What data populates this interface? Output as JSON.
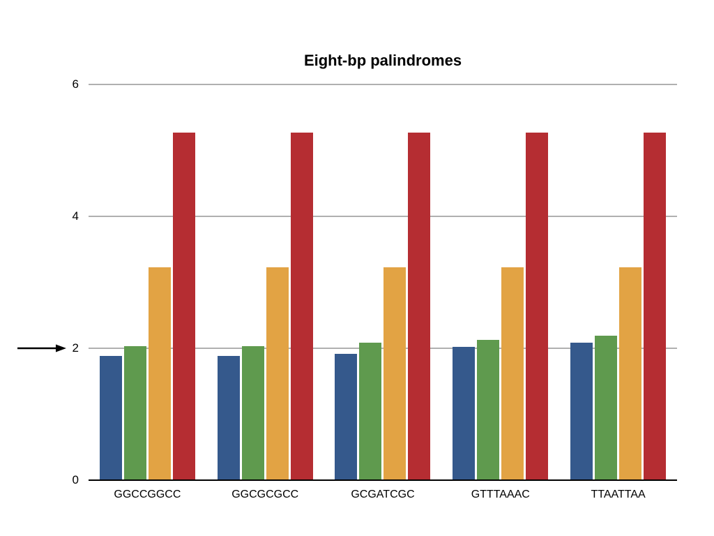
{
  "chart_data": {
    "type": "bar",
    "title": "Eight-bp palindromes",
    "categories": [
      "GGCCGGCC",
      "GGCGCGCC",
      "GCGATCGC",
      "GTTTAAAC",
      "TTAATTAA"
    ],
    "series": [
      {
        "name": "blue",
        "color": "#35598C",
        "values": [
          1.88,
          1.88,
          1.92,
          2.02,
          2.08
        ]
      },
      {
        "name": "green",
        "color": "#5F9A4E",
        "values": [
          2.03,
          2.03,
          2.09,
          2.13,
          2.19
        ]
      },
      {
        "name": "orange",
        "color": "#E2A344",
        "values": [
          3.23,
          3.23,
          3.23,
          3.23,
          3.23
        ]
      },
      {
        "name": "red",
        "color": "#B52D32",
        "values": [
          5.27,
          5.27,
          5.27,
          5.27,
          5.27
        ]
      }
    ],
    "xlabel": "",
    "ylabel": "",
    "ylim": [
      0,
      6
    ],
    "yticks": [
      0,
      2,
      4,
      6
    ],
    "grid": "horizontal",
    "legend": "none",
    "annotations": [
      {
        "type": "arrow",
        "direction": "right",
        "points_at_ytick": 2,
        "side": "left-of-y-axis"
      }
    ]
  },
  "colors": {
    "background": "#ffffff",
    "gridline": "#b0b0b0",
    "axis_line": "#000000",
    "text": "#000000"
  }
}
